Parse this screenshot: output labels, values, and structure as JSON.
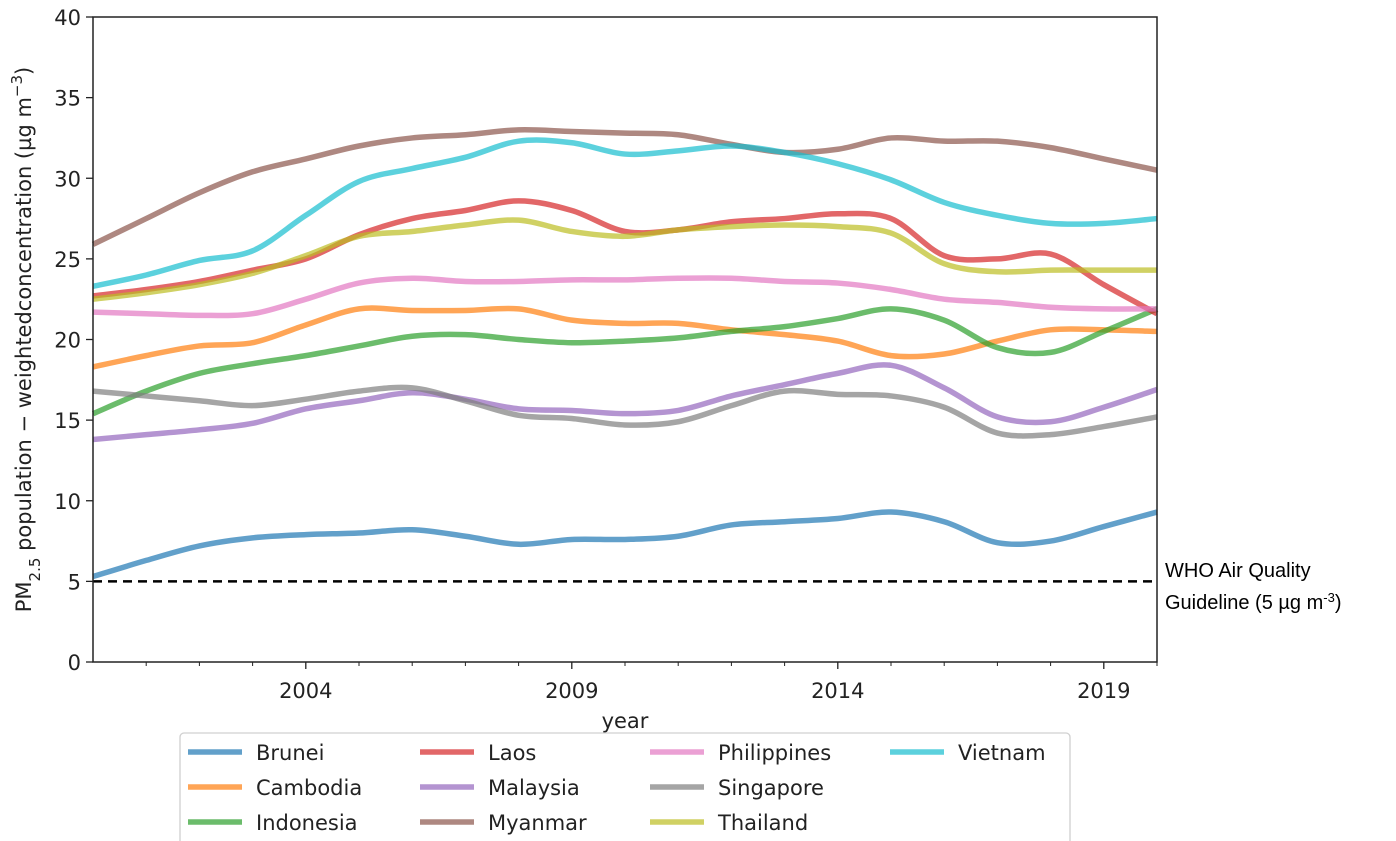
{
  "chart_data": {
    "type": "line",
    "ylabel": [
      {
        "text": "PM"
      },
      {
        "text": "2.5",
        "sub": true
      },
      {
        "text": " population − weightedconcentration (µg m"
      },
      {
        "text": "−3",
        "sup": true
      },
      {
        "text": ")"
      }
    ],
    "xlabel": "year",
    "x": [
      2000,
      2001,
      2002,
      2003,
      2004,
      2005,
      2006,
      2007,
      2008,
      2009,
      2010,
      2011,
      2012,
      2013,
      2014,
      2015,
      2016,
      2017,
      2018,
      2019,
      2020
    ],
    "xlim": [
      2000,
      2020
    ],
    "xticks": [
      2004,
      2009,
      2014,
      2019
    ],
    "xminorticks": [
      2001,
      2002,
      2003,
      2005,
      2006,
      2007,
      2008,
      2010,
      2011,
      2012,
      2013,
      2015,
      2016,
      2017,
      2018,
      2020
    ],
    "ylim": [
      0,
      40
    ],
    "yticks": [
      0,
      5,
      10,
      15,
      20,
      25,
      30,
      35,
      40
    ],
    "grid": true,
    "legend": "bottom",
    "series": [
      {
        "name": "Brunei",
        "color": "#1f77b4",
        "values": [
          5.3,
          6.3,
          7.2,
          7.7,
          7.9,
          8.0,
          8.2,
          7.8,
          7.3,
          7.6,
          7.6,
          7.8,
          8.5,
          8.7,
          8.9,
          9.3,
          8.7,
          7.4,
          7.5,
          8.4,
          9.3
        ]
      },
      {
        "name": "Cambodia",
        "color": "#ff7f0e",
        "values": [
          18.3,
          19.0,
          19.6,
          19.8,
          20.9,
          21.9,
          21.8,
          21.8,
          21.9,
          21.2,
          21.0,
          21.0,
          20.6,
          20.3,
          19.9,
          19.0,
          19.1,
          19.9,
          20.6,
          20.6,
          20.5
        ]
      },
      {
        "name": "Indonesia",
        "color": "#2ca02c",
        "values": [
          15.4,
          16.8,
          17.9,
          18.5,
          19.0,
          19.6,
          20.2,
          20.3,
          20.0,
          19.8,
          19.9,
          20.1,
          20.5,
          20.8,
          21.3,
          21.9,
          21.2,
          19.5,
          19.2,
          20.5,
          21.9
        ]
      },
      {
        "name": "Laos",
        "color": "#d62728",
        "values": [
          22.7,
          23.1,
          23.6,
          24.3,
          25.0,
          26.5,
          27.5,
          28.0,
          28.6,
          28.0,
          26.7,
          26.8,
          27.3,
          27.5,
          27.8,
          27.5,
          25.2,
          25.0,
          25.3,
          23.4,
          21.6
        ]
      },
      {
        "name": "Malaysia",
        "color": "#9467bd",
        "values": [
          13.8,
          14.1,
          14.4,
          14.8,
          15.7,
          16.2,
          16.7,
          16.3,
          15.7,
          15.6,
          15.4,
          15.6,
          16.5,
          17.2,
          17.9,
          18.4,
          17.0,
          15.2,
          14.9,
          15.8,
          16.9
        ]
      },
      {
        "name": "Myanmar",
        "color": "#8c564b",
        "values": [
          25.9,
          27.5,
          29.1,
          30.4,
          31.2,
          32.0,
          32.5,
          32.7,
          33.0,
          32.9,
          32.8,
          32.7,
          32.1,
          31.6,
          31.8,
          32.5,
          32.3,
          32.3,
          31.9,
          31.2,
          30.5
        ]
      },
      {
        "name": "Philippines",
        "color": "#e377c2",
        "values": [
          21.7,
          21.6,
          21.5,
          21.6,
          22.5,
          23.5,
          23.8,
          23.6,
          23.6,
          23.7,
          23.7,
          23.8,
          23.8,
          23.6,
          23.5,
          23.1,
          22.5,
          22.3,
          22.0,
          21.9,
          21.9
        ]
      },
      {
        "name": "Singapore",
        "color": "#7f7f7f",
        "values": [
          16.8,
          16.5,
          16.2,
          15.9,
          16.3,
          16.8,
          17.0,
          16.2,
          15.3,
          15.1,
          14.7,
          14.9,
          15.9,
          16.8,
          16.6,
          16.5,
          15.8,
          14.2,
          14.1,
          14.6,
          15.2
        ]
      },
      {
        "name": "Thailand",
        "color": "#bcbd22",
        "values": [
          22.5,
          22.9,
          23.4,
          24.1,
          25.2,
          26.4,
          26.7,
          27.1,
          27.4,
          26.7,
          26.4,
          26.8,
          27.0,
          27.1,
          27.0,
          26.6,
          24.7,
          24.2,
          24.3,
          24.3,
          24.3
        ]
      },
      {
        "name": "Vietnam",
        "color": "#17becf",
        "values": [
          23.3,
          24.0,
          24.9,
          25.5,
          27.7,
          29.8,
          30.6,
          31.3,
          32.3,
          32.2,
          31.5,
          31.7,
          32.0,
          31.6,
          30.9,
          29.9,
          28.5,
          27.7,
          27.2,
          27.2,
          27.5
        ]
      }
    ],
    "guideline": {
      "value": 5,
      "color": "#000000",
      "lines": [
        "WHO Air Quality",
        "Guideline (5 µg m"
      ],
      "sup": "-3",
      "close": ")"
    }
  }
}
